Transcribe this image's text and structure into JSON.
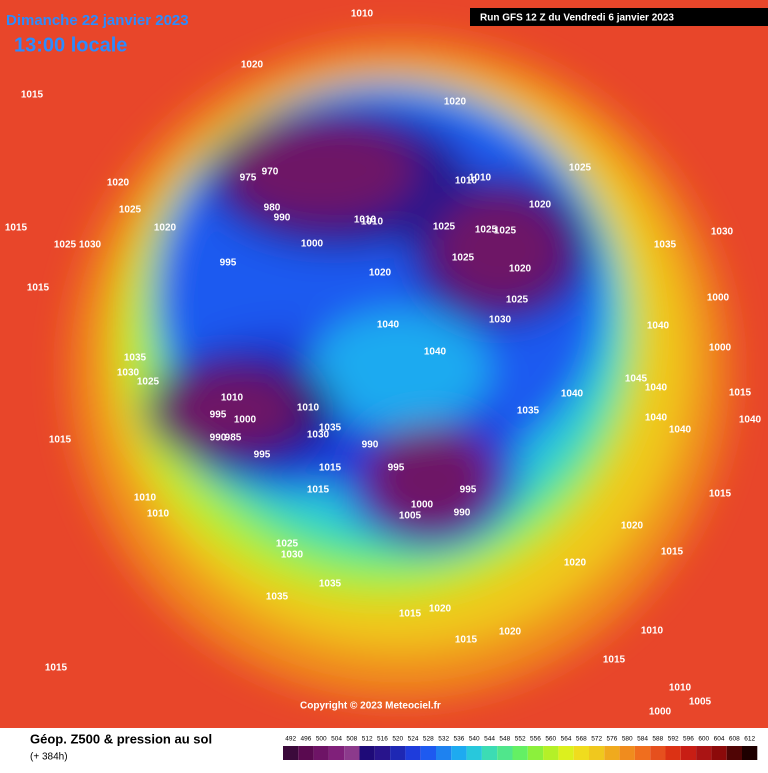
{
  "header": {
    "date": "Dimanche 22 janvier 2023",
    "time": "13:00 locale",
    "run": "Run GFS 12 Z du Vendredi 6 janvier 2023"
  },
  "map": {
    "copyright": "Copyright © 2023 Meteociel.fr",
    "pressure_labels": [
      "1010",
      "1015",
      "1020",
      "1015",
      "1020",
      "1025",
      "1015",
      "1020",
      "1025",
      "1030",
      "1015",
      "995",
      "975",
      "970",
      "980",
      "990",
      "1000",
      "1010",
      "1020",
      "1020",
      "1010",
      "1025",
      "1025",
      "1025",
      "1025",
      "1020",
      "1025",
      "1030",
      "1020",
      "1025",
      "1010",
      "1035",
      "1030",
      "1000",
      "1040",
      "1010",
      "1040",
      "1035",
      "1040",
      "1000",
      "1030",
      "1025",
      "1010",
      "995",
      "1000",
      "990",
      "985",
      "995",
      "1010",
      "1030",
      "1035",
      "1015",
      "1015",
      "1010",
      "1010",
      "990",
      "995",
      "1000",
      "1005",
      "995",
      "990",
      "1035",
      "1040",
      "1045",
      "1040",
      "1040",
      "1040",
      "1015",
      "1015",
      "1020",
      "1015",
      "1020",
      "1025",
      "1030",
      "1035",
      "1035",
      "1015",
      "1020",
      "1015",
      "1020",
      "1010",
      "1015",
      "1010",
      "1005",
      "1000",
      "1040",
      "1015"
    ]
  },
  "legend": {
    "title": "Géop. Z500 & pression au sol",
    "lead": "(+ 384h)",
    "colorbar": {
      "values": [
        492,
        496,
        500,
        504,
        508,
        512,
        516,
        520,
        524,
        528,
        532,
        536,
        540,
        544,
        548,
        552,
        556,
        560,
        564,
        568,
        572,
        576,
        580,
        584,
        588,
        592,
        596,
        600,
        604,
        608,
        612
      ],
      "colors": [
        "#3b0a3b",
        "#5a0a50",
        "#6e1466",
        "#80207a",
        "#8c3a8c",
        "#1e0a78",
        "#28148c",
        "#1e28b4",
        "#1e3cdc",
        "#1e5af0",
        "#1e82f0",
        "#1eaaf0",
        "#28c8dc",
        "#3cdcb4",
        "#50e68c",
        "#64f064",
        "#8cf03c",
        "#b4f028",
        "#dcf01e",
        "#f0dc1e",
        "#f0c81e",
        "#f0aa1e",
        "#f08c1e",
        "#f06e1e",
        "#e6501e",
        "#dc3214",
        "#c81e14",
        "#aa1414",
        "#8c0a0a",
        "#500505",
        "#1e0000"
      ]
    }
  }
}
